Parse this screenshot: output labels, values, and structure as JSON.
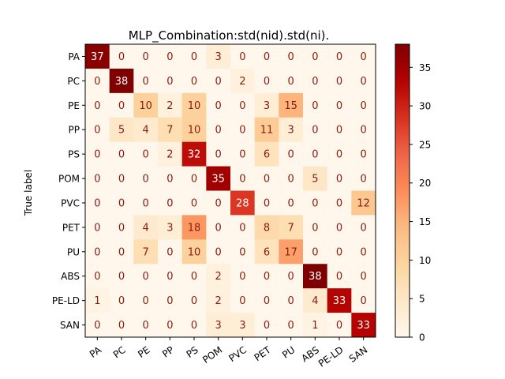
{
  "chart_data": {
    "type": "heatmap",
    "title": "MLP_Combination:std(nid).std(ni).",
    "ylabel": "True label",
    "xlabel": "",
    "labels": [
      "PA",
      "PC",
      "PE",
      "PP",
      "PS",
      "POM",
      "PVC",
      "PET",
      "PU",
      "ABS",
      "PE-LD",
      "SAN"
    ],
    "matrix": [
      [
        37,
        0,
        0,
        0,
        0,
        3,
        0,
        0,
        0,
        0,
        0,
        0
      ],
      [
        0,
        38,
        0,
        0,
        0,
        0,
        2,
        0,
        0,
        0,
        0,
        0
      ],
      [
        0,
        0,
        10,
        2,
        10,
        0,
        0,
        3,
        15,
        0,
        0,
        0
      ],
      [
        0,
        5,
        4,
        7,
        10,
        0,
        0,
        11,
        3,
        0,
        0,
        0
      ],
      [
        0,
        0,
        0,
        2,
        32,
        0,
        0,
        6,
        0,
        0,
        0,
        0
      ],
      [
        0,
        0,
        0,
        0,
        0,
        35,
        0,
        0,
        0,
        5,
        0,
        0
      ],
      [
        0,
        0,
        0,
        0,
        0,
        0,
        28,
        0,
        0,
        0,
        0,
        12
      ],
      [
        0,
        0,
        4,
        3,
        18,
        0,
        0,
        8,
        7,
        0,
        0,
        0
      ],
      [
        0,
        0,
        7,
        0,
        10,
        0,
        0,
        6,
        17,
        0,
        0,
        0
      ],
      [
        0,
        0,
        0,
        0,
        0,
        2,
        0,
        0,
        0,
        38,
        0,
        0
      ],
      [
        1,
        0,
        0,
        0,
        0,
        2,
        0,
        0,
        0,
        4,
        33,
        0
      ],
      [
        0,
        0,
        0,
        0,
        0,
        3,
        3,
        0,
        0,
        1,
        0,
        33
      ]
    ],
    "colormap": "OrRd",
    "vmin": 0,
    "vmax": 38,
    "colorbar_ticks": [
      0,
      5,
      10,
      15,
      20,
      25,
      30,
      35
    ]
  }
}
